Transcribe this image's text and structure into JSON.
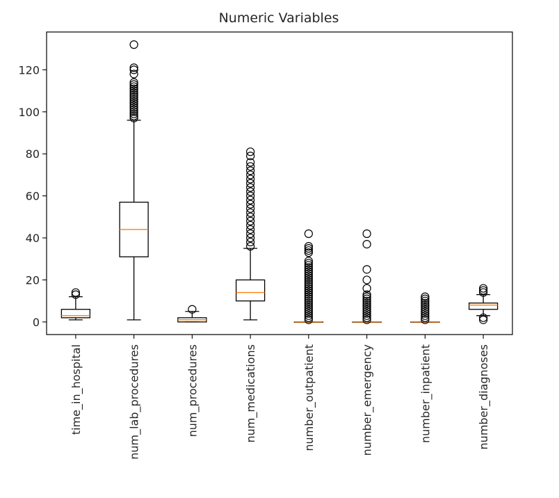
{
  "chart_data": {
    "type": "boxplot",
    "title": "Numeric Variables",
    "xlabel": "",
    "ylabel": "",
    "ylim": [
      -6,
      138
    ],
    "yticks": [
      0,
      20,
      40,
      60,
      80,
      100,
      120
    ],
    "grid": false,
    "colors": {
      "box": "#000000",
      "median": "#ff7f0e",
      "outlier": "#000000",
      "axes": "#000000",
      "text": "#262626"
    },
    "series": [
      {
        "name": "time_in_hospital",
        "whisker_low": 1,
        "q1": 2,
        "median": 3,
        "q3": 6,
        "whisker_high": 12,
        "outliers": [
          13,
          14
        ]
      },
      {
        "name": "num_lab_procedures",
        "whisker_low": 1,
        "q1": 31,
        "median": 44,
        "q3": 57,
        "whisker_high": 96,
        "outliers": [
          97,
          98,
          99,
          100,
          101,
          102,
          103,
          104,
          105,
          106,
          107,
          108,
          109,
          110,
          111,
          112,
          113,
          114,
          118,
          120,
          121,
          132
        ]
      },
      {
        "name": "num_procedures",
        "whisker_low": 0,
        "q1": 0,
        "median": 1,
        "q3": 2,
        "whisker_high": 5,
        "outliers": [
          6
        ]
      },
      {
        "name": "num_medications",
        "whisker_low": 1,
        "q1": 10,
        "median": 14,
        "q3": 20,
        "whisker_high": 35,
        "outliers": [
          36,
          38,
          40,
          42,
          44,
          46,
          48,
          50,
          52,
          54,
          56,
          58,
          60,
          62,
          64,
          66,
          68,
          70,
          72,
          74,
          76,
          79,
          81
        ]
      },
      {
        "name": "number_outpatient",
        "whisker_low": 0,
        "q1": 0,
        "median": 0,
        "q3": 0,
        "whisker_high": 0,
        "outliers": [
          1,
          2,
          3,
          4,
          5,
          6,
          7,
          8,
          9,
          10,
          11,
          12,
          13,
          14,
          15,
          16,
          17,
          18,
          19,
          20,
          21,
          22,
          23,
          24,
          25,
          26,
          27,
          28,
          29,
          33,
          34,
          35,
          36,
          42
        ]
      },
      {
        "name": "number_emergency",
        "whisker_low": 0,
        "q1": 0,
        "median": 0,
        "q3": 0,
        "whisker_high": 0,
        "outliers": [
          1,
          2,
          3,
          4,
          5,
          6,
          7,
          8,
          9,
          10,
          11,
          12,
          13,
          16,
          20,
          25,
          37,
          42
        ]
      },
      {
        "name": "number_inpatient",
        "whisker_low": 0,
        "q1": 0,
        "median": 0,
        "q3": 0,
        "whisker_high": 0,
        "outliers": [
          1,
          2,
          3,
          4,
          5,
          6,
          7,
          8,
          9,
          10,
          11,
          12
        ]
      },
      {
        "name": "number_diagnoses",
        "whisker_low": 3,
        "q1": 6,
        "median": 8,
        "q3": 9,
        "whisker_high": 13,
        "outliers": [
          1,
          2,
          14,
          15,
          16
        ]
      }
    ]
  }
}
